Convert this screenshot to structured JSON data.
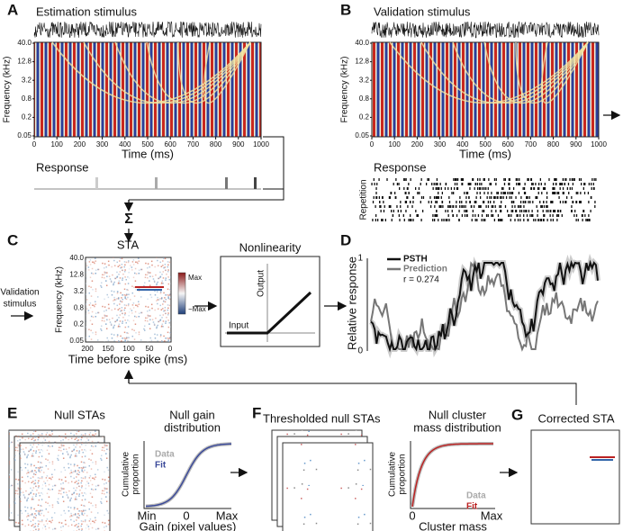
{
  "A": {
    "label": "A",
    "title": "Estimation stimulus",
    "y_label": "Frequency (kHz)",
    "y_ticks": [
      "40.0",
      "12.8",
      "3.2",
      "0.8",
      "0.2",
      "0.05"
    ],
    "x_ticks": [
      0,
      100,
      200,
      300,
      400,
      500,
      600,
      700,
      800,
      900,
      1000
    ],
    "x_label": "Time (ms)",
    "response_label": "Response"
  },
  "B": {
    "label": "B",
    "title": "Validation stimulus",
    "y_label": "Frequency (kHz)",
    "y_ticks": [
      "40.0",
      "12.8",
      "3.2",
      "0.8",
      "0.2",
      "0.05"
    ],
    "x_ticks": [
      0,
      100,
      200,
      300,
      400,
      500,
      600,
      700,
      800,
      900,
      1000
    ],
    "x_label": "Time (ms)",
    "response_label": "Response",
    "repetition_label": "Repetition"
  },
  "sum_symbol": "Σ",
  "C": {
    "label": "C",
    "input_label": [
      "Validation",
      "stimulus"
    ],
    "sta": {
      "title": "STA",
      "y_label": "Frequency (kHz)",
      "y_ticks": [
        "40.0",
        "12.8",
        "3.2",
        "0.8",
        "0.2",
        "0.05"
      ],
      "x_ticks": [
        "200",
        "150",
        "100",
        "50",
        "0"
      ],
      "x_label": "Time before spike (ms)",
      "colorbar": [
        "Max",
        "−Max"
      ]
    },
    "nonlinearity": {
      "title": "Nonlinearity",
      "y_label": "Output",
      "x_label": "Input"
    }
  },
  "D": {
    "label": "D",
    "y_label": "Relative response",
    "y_ticks": [
      "1",
      "0"
    ],
    "legend": [
      "PSTH",
      "Prediction"
    ],
    "stat": "r = 0.274"
  },
  "E": {
    "label": "E",
    "stack_title": "Null STAs",
    "dist_title": [
      "Null gain",
      "distribution"
    ],
    "y_label": [
      "Cumulative",
      "proportion"
    ],
    "legend": [
      "Data",
      "Fit"
    ],
    "x_ticks": [
      "Min",
      "0",
      "Max"
    ],
    "x_label": "Gain (pixel values)"
  },
  "F": {
    "label": "F",
    "stack_title": "Thresholded null STAs",
    "dist_title": [
      "Null cluster",
      "mass distribution"
    ],
    "y_label": [
      "Cumulative",
      "proportion"
    ],
    "legend": [
      "Data",
      "Fit"
    ],
    "x_ticks": [
      "0",
      "Max"
    ],
    "x_label": "Cluster mass"
  },
  "G": {
    "label": "G",
    "title": "Corrected STA"
  }
}
